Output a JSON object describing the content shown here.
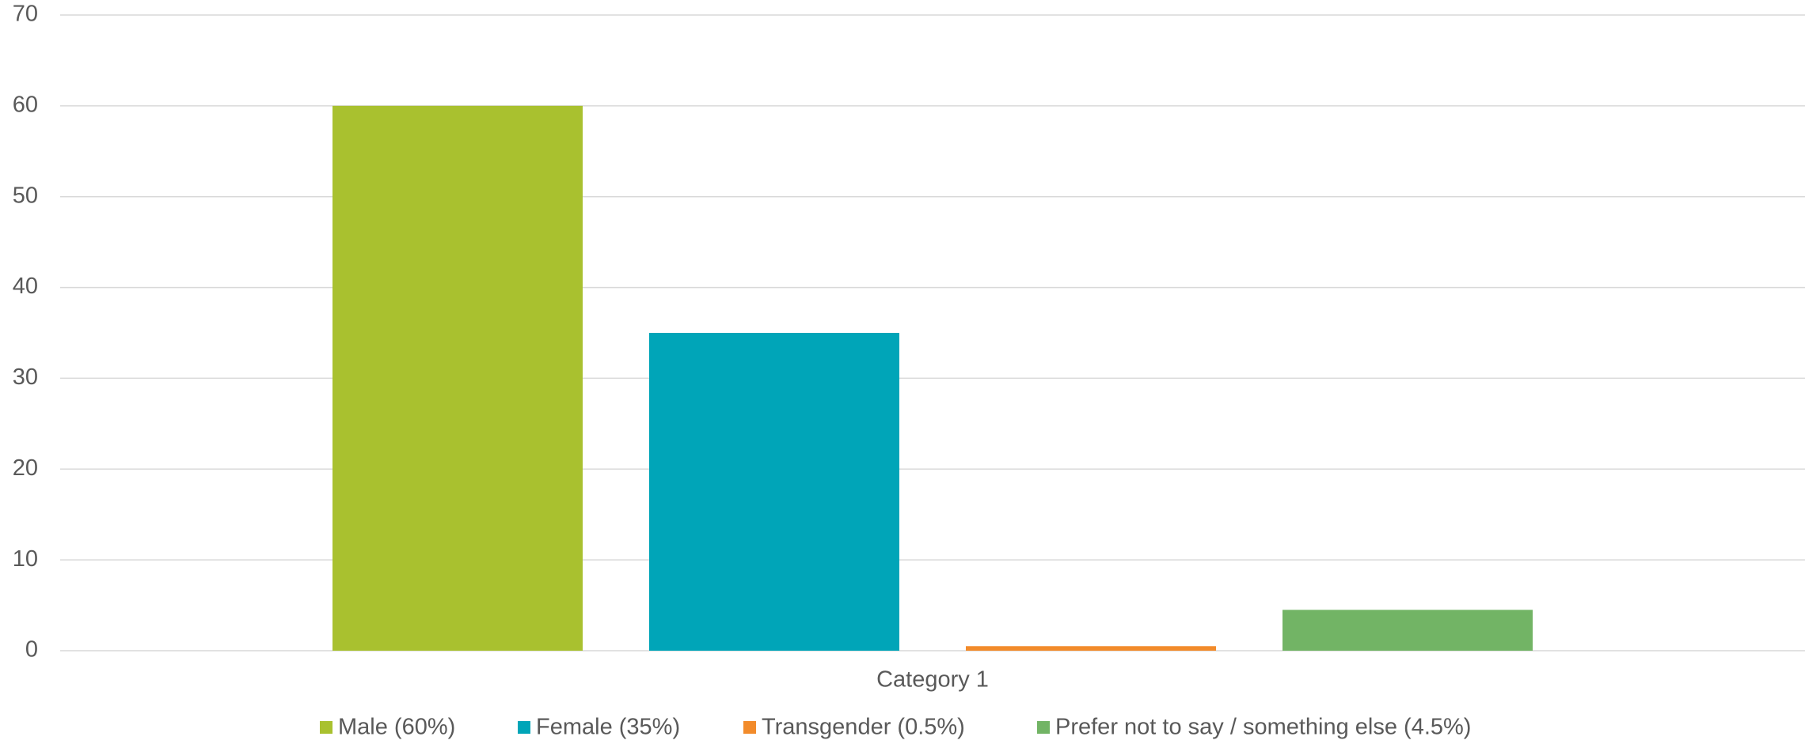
{
  "chart_data": {
    "type": "bar",
    "categories": [
      "Category 1"
    ],
    "series": [
      {
        "name": "Male (60%)",
        "color": "#a9c12f",
        "values": [
          60
        ]
      },
      {
        "name": "Female (35%)",
        "color": "#00a5b8",
        "values": [
          35
        ]
      },
      {
        "name": "Transgender (0.5%)",
        "color": "#f28b2b",
        "values": [
          0.5
        ]
      },
      {
        "name": "Prefer not to say / something else (4.5%)",
        "color": "#72b465",
        "values": [
          4.5
        ]
      }
    ],
    "ylim": [
      0,
      70
    ],
    "yticks": [
      0,
      10,
      20,
      30,
      40,
      50,
      60,
      70
    ],
    "grid": true,
    "legend": "bottom"
  }
}
